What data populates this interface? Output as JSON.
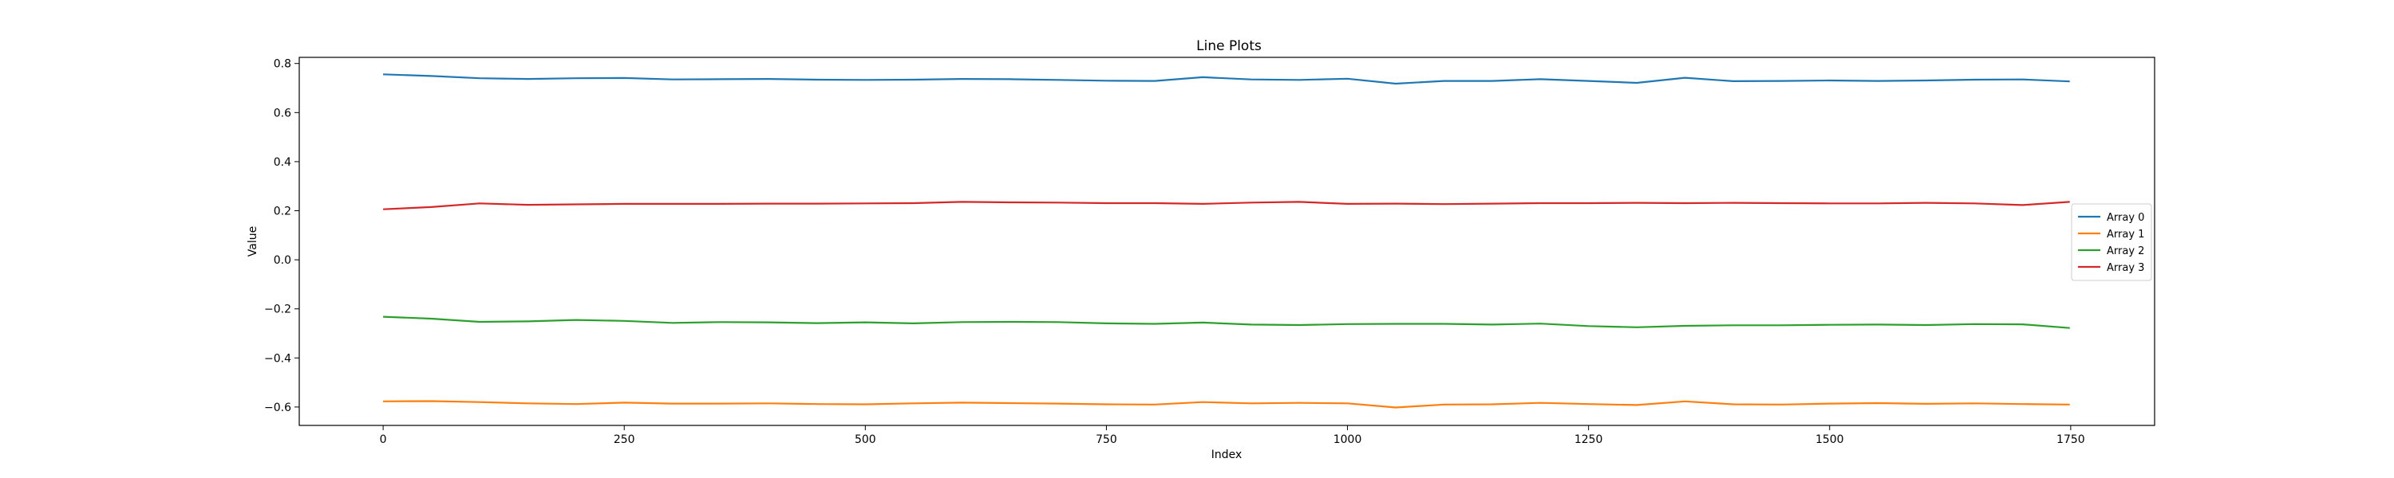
{
  "chart_data": {
    "type": "line",
    "title": "Line Plots",
    "xlabel": "Index",
    "ylabel": "Value",
    "xlim": [
      -87,
      1837
    ],
    "ylim": [
      -0.675,
      0.825
    ],
    "xticks": [
      0,
      250,
      500,
      750,
      1000,
      1250,
      1500,
      1750
    ],
    "yticks": [
      -0.6,
      -0.4,
      -0.2,
      0.0,
      0.2,
      0.4,
      0.6,
      0.8
    ],
    "x_tick_labels": [
      "0",
      "250",
      "500",
      "750",
      "1000",
      "1250",
      "1500",
      "1750"
    ],
    "y_tick_labels": [
      "−0.6",
      "−0.4",
      "−0.2",
      "0.0",
      "0.2",
      "0.4",
      "0.6",
      "0.8"
    ],
    "grid": false,
    "legend_position": "center-right",
    "x": [
      0,
      50,
      100,
      150,
      200,
      250,
      300,
      350,
      400,
      450,
      500,
      550,
      600,
      650,
      700,
      750,
      800,
      850,
      900,
      950,
      1000,
      1050,
      1100,
      1150,
      1200,
      1250,
      1300,
      1350,
      1400,
      1450,
      1500,
      1550,
      1600,
      1650,
      1700,
      1749
    ],
    "series": [
      {
        "name": "Array 0",
        "color": "#1f77b4",
        "values": [
          0.756,
          0.749,
          0.74,
          0.737,
          0.74,
          0.741,
          0.735,
          0.736,
          0.737,
          0.734,
          0.733,
          0.734,
          0.737,
          0.736,
          0.733,
          0.73,
          0.729,
          0.744,
          0.735,
          0.733,
          0.738,
          0.718,
          0.729,
          0.729,
          0.736,
          0.729,
          0.721,
          0.742,
          0.728,
          0.729,
          0.731,
          0.729,
          0.731,
          0.734,
          0.735,
          0.727
        ]
      },
      {
        "name": "Array 1",
        "color": "#ff7f0e",
        "values": [
          -0.577,
          -0.576,
          -0.58,
          -0.585,
          -0.588,
          -0.582,
          -0.586,
          -0.586,
          -0.585,
          -0.588,
          -0.589,
          -0.585,
          -0.582,
          -0.584,
          -0.586,
          -0.589,
          -0.59,
          -0.58,
          -0.585,
          -0.583,
          -0.585,
          -0.602,
          -0.59,
          -0.589,
          -0.583,
          -0.588,
          -0.592,
          -0.577,
          -0.589,
          -0.59,
          -0.586,
          -0.584,
          -0.587,
          -0.585,
          -0.588,
          -0.59
        ]
      },
      {
        "name": "Array 2",
        "color": "#2ca02c",
        "values": [
          -0.232,
          -0.24,
          -0.253,
          -0.251,
          -0.245,
          -0.249,
          -0.257,
          -0.254,
          -0.255,
          -0.258,
          -0.255,
          -0.259,
          -0.254,
          -0.253,
          -0.254,
          -0.259,
          -0.261,
          -0.256,
          -0.264,
          -0.266,
          -0.262,
          -0.261,
          -0.261,
          -0.264,
          -0.26,
          -0.27,
          -0.275,
          -0.269,
          -0.267,
          -0.267,
          -0.265,
          -0.264,
          -0.266,
          -0.262,
          -0.263,
          -0.278
        ]
      },
      {
        "name": "Array 3",
        "color": "#d62728",
        "values": [
          0.206,
          0.215,
          0.23,
          0.224,
          0.226,
          0.228,
          0.228,
          0.228,
          0.229,
          0.229,
          0.23,
          0.231,
          0.236,
          0.234,
          0.233,
          0.231,
          0.231,
          0.228,
          0.233,
          0.236,
          0.228,
          0.229,
          0.227,
          0.229,
          0.231,
          0.231,
          0.232,
          0.231,
          0.232,
          0.231,
          0.23,
          0.23,
          0.232,
          0.23,
          0.223,
          0.236
        ]
      }
    ]
  }
}
